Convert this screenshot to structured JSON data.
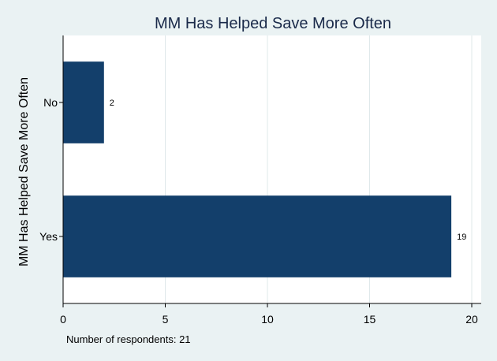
{
  "chart_data": {
    "type": "bar",
    "orientation": "horizontal",
    "title": "MM Has Helped Save More Often",
    "ylabel": "MM Has Helped Save More Often",
    "xlabel": "",
    "categories": [
      "No",
      "Yes"
    ],
    "values": [
      2,
      19
    ],
    "data_labels": [
      "2",
      "19"
    ],
    "xlim": [
      0,
      20
    ],
    "xticks": [
      0,
      5,
      10,
      15,
      20
    ],
    "grid": true,
    "note": "Number of respondents: 21",
    "colors": {
      "bar": "#133f6b",
      "background": "#eaf2f3",
      "plot_bg": "#ffffff",
      "grid": "#dfe8ea"
    }
  }
}
